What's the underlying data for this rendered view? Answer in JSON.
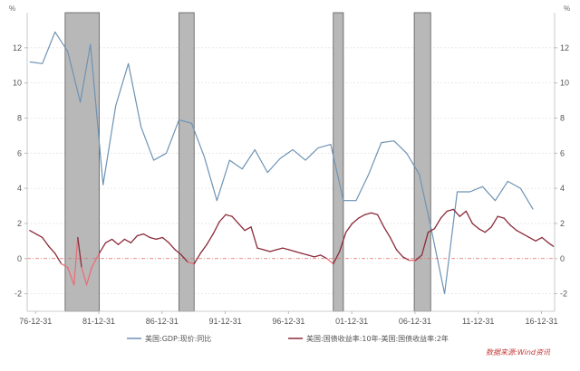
{
  "chart_data": {
    "type": "line",
    "left_axis": {
      "unit": "%",
      "ylim": [
        -3,
        14
      ],
      "ticks": [
        -2,
        0,
        2,
        4,
        6,
        8,
        10,
        12
      ]
    },
    "right_axis": {
      "unit": "%",
      "ylim": [
        -3,
        14
      ],
      "ticks": [
        -2,
        0,
        2,
        4,
        6,
        8,
        10,
        12
      ]
    },
    "x_ticks": [
      {
        "label": "76-12-31",
        "x": 1976.96
      },
      {
        "label": "81-12-31",
        "x": 1981.96
      },
      {
        "label": "86-12-31",
        "x": 1986.96
      },
      {
        "label": "91-12-31",
        "x": 1991.96
      },
      {
        "label": "96-12-31",
        "x": 1996.96
      },
      {
        "label": "01-12-31",
        "x": 2001.96
      },
      {
        "label": "06-12-31",
        "x": 2006.96
      },
      {
        "label": "11-12-31",
        "x": 2011.96
      },
      {
        "label": "16-12-31",
        "x": 2016.96
      }
    ],
    "xlim": [
      1976.3,
      2018.0
    ],
    "recessions": [
      [
        1979.3,
        1982.0
      ],
      [
        1988.3,
        1989.5
      ],
      [
        2000.5,
        2001.3
      ],
      [
        2006.9,
        2008.2
      ]
    ],
    "series": [
      {
        "name": "美国:GDP:现价:同比",
        "color": "#6e93b4",
        "points": [
          [
            1976.5,
            11.2
          ],
          [
            1977.5,
            11.1
          ],
          [
            1978.5,
            12.9
          ],
          [
            1979.5,
            11.8
          ],
          [
            1980.5,
            8.9
          ],
          [
            1981.3,
            12.2
          ],
          [
            1982.3,
            4.2
          ],
          [
            1983.3,
            8.7
          ],
          [
            1984.3,
            11.1
          ],
          [
            1985.3,
            7.5
          ],
          [
            1986.3,
            5.6
          ],
          [
            1987.3,
            6.0
          ],
          [
            1988.3,
            7.9
          ],
          [
            1989.3,
            7.7
          ],
          [
            1990.3,
            5.8
          ],
          [
            1991.3,
            3.3
          ],
          [
            1992.3,
            5.6
          ],
          [
            1993.3,
            5.1
          ],
          [
            1994.3,
            6.2
          ],
          [
            1995.3,
            4.9
          ],
          [
            1996.3,
            5.7
          ],
          [
            1997.3,
            6.2
          ],
          [
            1998.3,
            5.6
          ],
          [
            1999.3,
            6.3
          ],
          [
            2000.3,
            6.5
          ],
          [
            2001.3,
            3.3
          ],
          [
            2002.3,
            3.3
          ],
          [
            2003.3,
            4.8
          ],
          [
            2004.3,
            6.6
          ],
          [
            2005.3,
            6.7
          ],
          [
            2006.3,
            6.0
          ],
          [
            2007.3,
            4.8
          ],
          [
            2008.3,
            1.5
          ],
          [
            2009.3,
            -2.0
          ],
          [
            2010.3,
            3.8
          ],
          [
            2011.3,
            3.8
          ],
          [
            2012.3,
            4.1
          ],
          [
            2013.3,
            3.3
          ],
          [
            2014.3,
            4.4
          ],
          [
            2015.3,
            4.0
          ],
          [
            2016.3,
            2.8
          ]
        ]
      },
      {
        "name": "美国:国债收益率:10年-美国:国债收益率:2年",
        "color": "#8b2b3a",
        "inverted_color": "#ea6f78",
        "points": [
          [
            1976.5,
            1.6
          ],
          [
            1977.0,
            1.4
          ],
          [
            1977.5,
            1.2
          ],
          [
            1978.0,
            0.7
          ],
          [
            1978.5,
            0.3
          ],
          [
            1979.0,
            -0.3
          ],
          [
            1979.5,
            -0.5
          ],
          [
            1980.0,
            -1.5
          ],
          [
            1980.3,
            1.2
          ],
          [
            1980.6,
            -0.5
          ],
          [
            1981.0,
            -1.5
          ],
          [
            1981.4,
            -0.5
          ],
          [
            1982.0,
            0.3
          ],
          [
            1982.5,
            0.9
          ],
          [
            1983.0,
            1.1
          ],
          [
            1983.5,
            0.8
          ],
          [
            1984.0,
            1.1
          ],
          [
            1984.5,
            0.9
          ],
          [
            1985.0,
            1.3
          ],
          [
            1985.5,
            1.4
          ],
          [
            1986.0,
            1.2
          ],
          [
            1986.5,
            1.1
          ],
          [
            1987.0,
            1.2
          ],
          [
            1987.5,
            0.9
          ],
          [
            1988.0,
            0.5
          ],
          [
            1988.5,
            0.2
          ],
          [
            1989.0,
            -0.2
          ],
          [
            1989.5,
            -0.3
          ],
          [
            1990.0,
            0.3
          ],
          [
            1990.5,
            0.8
          ],
          [
            1991.0,
            1.4
          ],
          [
            1991.5,
            2.1
          ],
          [
            1992.0,
            2.5
          ],
          [
            1992.5,
            2.4
          ],
          [
            1993.0,
            2.0
          ],
          [
            1993.5,
            1.6
          ],
          [
            1994.0,
            1.8
          ],
          [
            1994.5,
            0.6
          ],
          [
            1995.0,
            0.5
          ],
          [
            1995.5,
            0.4
          ],
          [
            1996.0,
            0.5
          ],
          [
            1996.5,
            0.6
          ],
          [
            1997.0,
            0.5
          ],
          [
            1997.5,
            0.4
          ],
          [
            1998.0,
            0.3
          ],
          [
            1998.5,
            0.2
          ],
          [
            1999.0,
            0.1
          ],
          [
            1999.5,
            0.2
          ],
          [
            2000.0,
            0.0
          ],
          [
            2000.5,
            -0.3
          ],
          [
            2001.0,
            0.4
          ],
          [
            2001.5,
            1.5
          ],
          [
            2002.0,
            2.0
          ],
          [
            2002.5,
            2.3
          ],
          [
            2003.0,
            2.5
          ],
          [
            2003.5,
            2.6
          ],
          [
            2004.0,
            2.5
          ],
          [
            2004.5,
            1.8
          ],
          [
            2005.0,
            1.2
          ],
          [
            2005.5,
            0.5
          ],
          [
            2006.0,
            0.1
          ],
          [
            2006.5,
            -0.1
          ],
          [
            2007.0,
            -0.1
          ],
          [
            2007.5,
            0.2
          ],
          [
            2008.0,
            1.5
          ],
          [
            2008.5,
            1.7
          ],
          [
            2009.0,
            2.3
          ],
          [
            2009.5,
            2.7
          ],
          [
            2010.0,
            2.8
          ],
          [
            2010.5,
            2.4
          ],
          [
            2011.0,
            2.7
          ],
          [
            2011.5,
            2.0
          ],
          [
            2012.0,
            1.7
          ],
          [
            2012.5,
            1.5
          ],
          [
            2013.0,
            1.8
          ],
          [
            2013.5,
            2.4
          ],
          [
            2014.0,
            2.3
          ],
          [
            2014.5,
            1.9
          ],
          [
            2015.0,
            1.6
          ],
          [
            2015.5,
            1.4
          ],
          [
            2016.0,
            1.2
          ],
          [
            2016.5,
            1.0
          ],
          [
            2017.0,
            1.2
          ],
          [
            2017.5,
            0.9
          ],
          [
            2017.9,
            0.7
          ]
        ]
      }
    ],
    "legend": {
      "placement": "bottom",
      "entries": [
        "美国:GDP:现价:同比",
        "美国:国债收益率:10年-美国:国债收益率:2年"
      ]
    },
    "source_note": "数据来源:Wind资讯",
    "grid": true
  }
}
